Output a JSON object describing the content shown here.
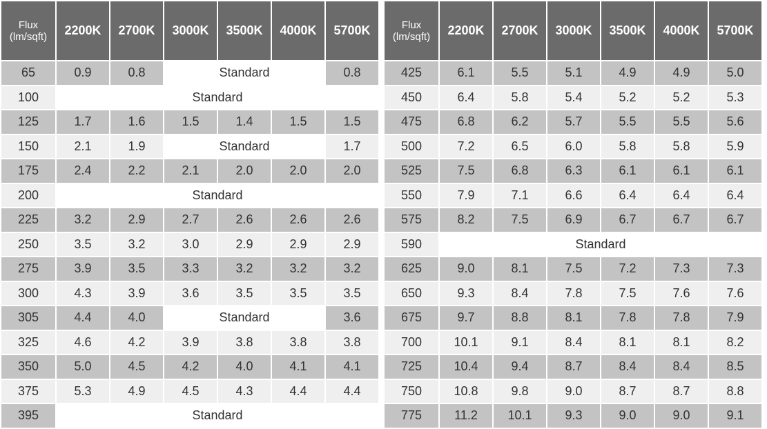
{
  "left_table": {
    "headers": [
      "Flux\n(lm/sqft)",
      "2200K",
      "2700K",
      "3000K",
      "3500K",
      "4000K",
      "5700K"
    ],
    "rows": [
      {
        "flux": "65",
        "cells": [
          "0.9",
          "0.8",
          {
            "text": "Standard",
            "span": 3
          },
          "0.8"
        ]
      },
      {
        "flux": "100",
        "cells": [
          {
            "text": "Standard",
            "span": 6
          }
        ]
      },
      {
        "flux": "125",
        "cells": [
          "1.7",
          "1.6",
          "1.5",
          "1.4",
          "1.5",
          "1.5"
        ]
      },
      {
        "flux": "150",
        "cells": [
          "2.1",
          "1.9",
          {
            "text": "Standard",
            "span": 3
          },
          "1.7"
        ]
      },
      {
        "flux": "175",
        "cells": [
          "2.4",
          "2.2",
          "2.1",
          "2.0",
          "2.0",
          "2.0"
        ]
      },
      {
        "flux": "200",
        "cells": [
          {
            "text": "Standard",
            "span": 6
          }
        ]
      },
      {
        "flux": "225",
        "cells": [
          "3.2",
          "2.9",
          "2.7",
          "2.6",
          "2.6",
          "2.6"
        ]
      },
      {
        "flux": "250",
        "cells": [
          "3.5",
          "3.2",
          "3.0",
          "2.9",
          "2.9",
          "2.9"
        ]
      },
      {
        "flux": "275",
        "cells": [
          "3.9",
          "3.5",
          "3.3",
          "3.2",
          "3.2",
          "3.2"
        ]
      },
      {
        "flux": "300",
        "cells": [
          "4.3",
          "3.9",
          "3.6",
          "3.5",
          "3.5",
          "3.5"
        ]
      },
      {
        "flux": "305",
        "cells": [
          "4.4",
          "4.0",
          {
            "text": "Standard",
            "span": 3
          },
          "3.6"
        ]
      },
      {
        "flux": "325",
        "cells": [
          "4.6",
          "4.2",
          "3.9",
          "3.8",
          "3.8",
          "3.8"
        ]
      },
      {
        "flux": "350",
        "cells": [
          "5.0",
          "4.5",
          "4.2",
          "4.0",
          "4.1",
          "4.1"
        ]
      },
      {
        "flux": "375",
        "cells": [
          "5.3",
          "4.9",
          "4.5",
          "4.3",
          "4.4",
          "4.4"
        ]
      },
      {
        "flux": "395",
        "cells": [
          {
            "text": "Standard",
            "span": 6
          }
        ]
      }
    ]
  },
  "right_table": {
    "headers": [
      "Flux\n(lm/sqft)",
      "2200K",
      "2700K",
      "3000K",
      "3500K",
      "4000K",
      "5700K"
    ],
    "rows": [
      {
        "flux": "425",
        "cells": [
          "6.1",
          "5.5",
          "5.1",
          "4.9",
          "4.9",
          "5.0"
        ]
      },
      {
        "flux": "450",
        "cells": [
          "6.4",
          "5.8",
          "5.4",
          "5.2",
          "5.2",
          "5.3"
        ]
      },
      {
        "flux": "475",
        "cells": [
          "6.8",
          "6.2",
          "5.7",
          "5.5",
          "5.5",
          "5.6"
        ]
      },
      {
        "flux": "500",
        "cells": [
          "7.2",
          "6.5",
          "6.0",
          "5.8",
          "5.8",
          "5.9"
        ]
      },
      {
        "flux": "525",
        "cells": [
          "7.5",
          "6.8",
          "6.3",
          "6.1",
          "6.1",
          "6.1"
        ]
      },
      {
        "flux": "550",
        "cells": [
          "7.9",
          "7.1",
          "6.6",
          "6.4",
          "6.4",
          "6.4"
        ]
      },
      {
        "flux": "575",
        "cells": [
          "8.2",
          "7.5",
          "6.9",
          "6.7",
          "6.7",
          "6.7"
        ]
      },
      {
        "flux": "590",
        "cells": [
          {
            "text": "Standard",
            "span": 6
          }
        ]
      },
      {
        "flux": "625",
        "cells": [
          "9.0",
          "8.1",
          "7.5",
          "7.2",
          "7.3",
          "7.3"
        ]
      },
      {
        "flux": "650",
        "cells": [
          "9.3",
          "8.4",
          "7.8",
          "7.5",
          "7.6",
          "7.6"
        ]
      },
      {
        "flux": "675",
        "cells": [
          "9.7",
          "8.8",
          "8.1",
          "7.8",
          "7.8",
          "7.9"
        ]
      },
      {
        "flux": "700",
        "cells": [
          "10.1",
          "9.1",
          "8.4",
          "8.1",
          "8.1",
          "8.2"
        ]
      },
      {
        "flux": "725",
        "cells": [
          "10.4",
          "9.4",
          "8.7",
          "8.4",
          "8.4",
          "8.5"
        ]
      },
      {
        "flux": "750",
        "cells": [
          "10.8",
          "9.8",
          "9.0",
          "8.7",
          "8.7",
          "8.8"
        ]
      },
      {
        "flux": "775",
        "cells": [
          "11.2",
          "10.1",
          "9.3",
          "9.0",
          "9.0",
          "9.1"
        ]
      }
    ]
  },
  "colors": {
    "header_bg": "#6b6b6b",
    "row_dark": "#c3c3c3",
    "row_light": "#efefef",
    "standard_bg": "#ffffff"
  }
}
